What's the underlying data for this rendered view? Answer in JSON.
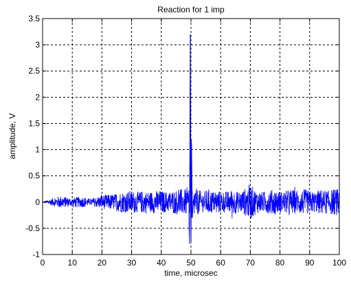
{
  "chart_data": {
    "type": "line",
    "title": "Reaction for 1 imp",
    "xlabel": "time, microsec",
    "ylabel": "amplitude, V",
    "xlim": [
      0,
      100
    ],
    "ylim": [
      -1,
      3.5
    ],
    "x_ticks": [
      0,
      10,
      20,
      30,
      40,
      50,
      60,
      70,
      80,
      90,
      100
    ],
    "x_tick_labels": [
      "0",
      "10",
      "20",
      "30",
      "40",
      "50",
      "60",
      "70",
      "80",
      "90",
      "100"
    ],
    "y_ticks": [
      -1,
      -0.5,
      0,
      0.5,
      1,
      1.5,
      2,
      2.5,
      3,
      3.5
    ],
    "y_tick_labels": [
      "-1",
      "-0.5",
      "0",
      "0.5",
      "1",
      "1.5",
      "2",
      "2.5",
      "3",
      "3.5"
    ],
    "grid": true,
    "grid_style": "dashed",
    "series": [
      {
        "color": "#0000ff",
        "x": [
          0,
          2,
          4,
          6,
          8,
          10,
          12,
          14,
          16,
          18,
          20,
          22,
          24,
          26,
          28,
          30,
          32,
          34,
          36,
          38,
          40,
          42,
          44,
          46,
          48,
          49,
          49.5,
          49.8,
          50,
          50.2,
          50.5,
          51,
          52,
          54,
          56,
          58,
          60,
          62,
          64,
          66,
          68,
          70,
          72,
          74,
          76,
          78,
          80,
          82,
          84,
          86,
          88,
          90,
          92,
          94,
          96,
          98,
          100
        ],
        "y": [
          0,
          0.05,
          0.08,
          0.12,
          0.1,
          0.08,
          0.1,
          0.1,
          0.06,
          0.1,
          0.13,
          0.15,
          0.15,
          0.2,
          0.2,
          0.22,
          0.2,
          0.22,
          0.2,
          0.22,
          0.22,
          0.2,
          0.22,
          0.25,
          0.25,
          0.3,
          -0.8,
          3.2,
          -0.75,
          1.2,
          -0.3,
          0.3,
          0.25,
          0.2,
          0.25,
          0.2,
          0.22,
          0.2,
          0.25,
          0.2,
          0.25,
          0.35,
          0.22,
          0.2,
          0.22,
          0.25,
          0.2,
          0.22,
          0.25,
          0.2,
          0.25,
          0.22,
          0.2,
          0.25,
          0.22,
          0.25,
          0.25
        ]
      }
    ]
  }
}
